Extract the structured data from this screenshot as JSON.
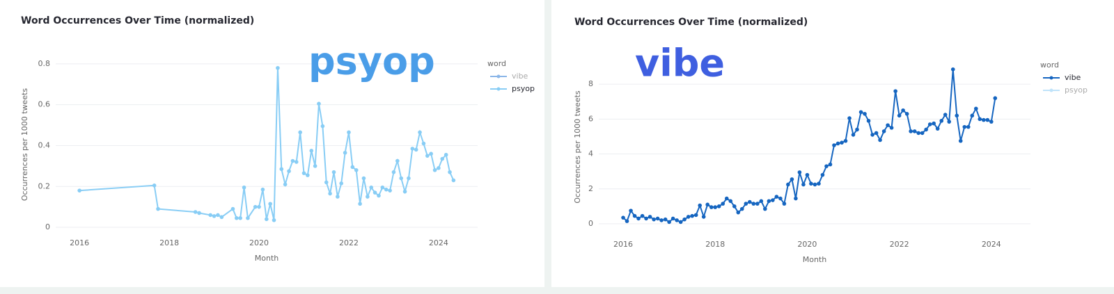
{
  "chart_data": [
    {
      "type": "line",
      "title": "Word Occurrences Over Time (normalized)",
      "annotation": "psyop",
      "x_label": "Month",
      "y_label": "Occurrences per 1000 tweets",
      "legend_title": "word",
      "xlim": [
        2015.47,
        2024.87
      ],
      "xticks": [
        2016,
        2018,
        2020,
        2022,
        2024
      ],
      "ylim": [
        -0.01,
        0.82
      ],
      "yticks": [
        0,
        0.2,
        0.4,
        0.6,
        0.8
      ],
      "grid": true,
      "x": [
        2016.0,
        2017.667,
        2017.75,
        2018.583,
        2018.667,
        2018.917,
        2019.0,
        2019.083,
        2019.167,
        2019.417,
        2019.5,
        2019.583,
        2019.667,
        2019.75,
        2019.917,
        2020.0,
        2020.083,
        2020.167,
        2020.25,
        2020.333,
        2020.417,
        2020.5,
        2020.583,
        2020.667,
        2020.75,
        2020.833,
        2020.917,
        2021.0,
        2021.083,
        2021.167,
        2021.25,
        2021.333,
        2021.417,
        2021.5,
        2021.583,
        2021.667,
        2021.75,
        2021.833,
        2021.917,
        2022.0,
        2022.083,
        2022.167,
        2022.25,
        2022.333,
        2022.417,
        2022.5,
        2022.583,
        2022.667,
        2022.75,
        2022.833,
        2022.917,
        2023.0,
        2023.083,
        2023.167,
        2023.25,
        2023.333,
        2023.417,
        2023.5,
        2023.583,
        2023.667,
        2023.75,
        2023.833,
        2023.917,
        2024.0,
        2024.083,
        2024.167,
        2024.25,
        2024.333
      ],
      "series": [
        {
          "name": "vibe",
          "color": "#8bb6e8",
          "visible": false
        },
        {
          "name": "psyop",
          "color": "#88cdf5",
          "visible": true,
          "values": [
            0.18,
            0.205,
            0.09,
            0.075,
            0.07,
            0.06,
            0.055,
            0.06,
            0.05,
            0.09,
            0.045,
            0.045,
            0.195,
            0.045,
            0.1,
            0.1,
            0.185,
            0.04,
            0.115,
            0.035,
            0.78,
            0.285,
            0.21,
            0.275,
            0.325,
            0.32,
            0.465,
            0.265,
            0.255,
            0.375,
            0.3,
            0.605,
            0.495,
            0.22,
            0.165,
            0.27,
            0.15,
            0.215,
            0.365,
            0.465,
            0.295,
            0.28,
            0.115,
            0.24,
            0.15,
            0.195,
            0.17,
            0.155,
            0.195,
            0.185,
            0.18,
            0.27,
            0.325,
            0.24,
            0.175,
            0.24,
            0.385,
            0.38,
            0.465,
            0.41,
            0.35,
            0.36,
            0.28,
            0.29,
            0.335,
            0.355,
            0.27,
            0.23
          ]
        }
      ]
    },
    {
      "type": "line",
      "title": "Word Occurrences Over Time (normalized)",
      "annotation": "vibe",
      "x_label": "Month",
      "y_label": "Occurrences per 1000 tweets",
      "legend_title": "word",
      "xlim": [
        2015.47,
        2024.85
      ],
      "xticks": [
        2016,
        2018,
        2020,
        2022,
        2024
      ],
      "ylim": [
        -0.4,
        9.2
      ],
      "yticks": [
        0,
        2,
        4,
        6,
        8
      ],
      "grid": true,
      "x": [
        2016.0,
        2016.083,
        2016.167,
        2016.25,
        2016.333,
        2016.417,
        2016.5,
        2016.583,
        2016.667,
        2016.75,
        2016.833,
        2016.917,
        2017.0,
        2017.083,
        2017.167,
        2017.25,
        2017.333,
        2017.417,
        2017.5,
        2017.583,
        2017.667,
        2017.75,
        2017.833,
        2017.917,
        2018.0,
        2018.083,
        2018.167,
        2018.25,
        2018.333,
        2018.417,
        2018.5,
        2018.583,
        2018.667,
        2018.75,
        2018.833,
        2018.917,
        2019.0,
        2019.083,
        2019.167,
        2019.25,
        2019.333,
        2019.417,
        2019.5,
        2019.583,
        2019.667,
        2019.75,
        2019.833,
        2019.917,
        2020.0,
        2020.083,
        2020.167,
        2020.25,
        2020.333,
        2020.417,
        2020.5,
        2020.583,
        2020.667,
        2020.75,
        2020.833,
        2020.917,
        2021.0,
        2021.083,
        2021.167,
        2021.25,
        2021.333,
        2021.417,
        2021.5,
        2021.583,
        2021.667,
        2021.75,
        2021.833,
        2021.917,
        2022.0,
        2022.083,
        2022.167,
        2022.25,
        2022.333,
        2022.417,
        2022.5,
        2022.583,
        2022.667,
        2022.75,
        2022.833,
        2022.917,
        2023.0,
        2023.083,
        2023.167,
        2023.25,
        2023.333,
        2023.417,
        2023.5,
        2023.583,
        2023.667,
        2023.75,
        2023.833,
        2023.917,
        2024.0,
        2024.083
      ],
      "series": [
        {
          "name": "vibe",
          "color": "#1565c0",
          "visible": true,
          "values": [
            0.35,
            0.15,
            0.75,
            0.45,
            0.3,
            0.45,
            0.3,
            0.4,
            0.25,
            0.3,
            0.2,
            0.25,
            0.1,
            0.3,
            0.2,
            0.1,
            0.25,
            0.4,
            0.45,
            0.5,
            1.05,
            0.4,
            1.1,
            0.95,
            0.95,
            1.0,
            1.15,
            1.45,
            1.3,
            1.0,
            0.65,
            0.85,
            1.15,
            1.25,
            1.15,
            1.15,
            1.3,
            0.85,
            1.3,
            1.35,
            1.55,
            1.45,
            1.15,
            2.25,
            2.55,
            1.45,
            2.95,
            2.25,
            2.8,
            2.3,
            2.25,
            2.3,
            2.8,
            3.3,
            3.4,
            4.5,
            4.6,
            4.65,
            4.75,
            6.05,
            5.1,
            5.4,
            6.4,
            6.3,
            5.9,
            5.1,
            5.2,
            4.8,
            5.3,
            5.65,
            5.5,
            7.6,
            6.2,
            6.5,
            6.3,
            5.3,
            5.3,
            5.2,
            5.2,
            5.4,
            5.7,
            5.75,
            5.45,
            5.9,
            6.25,
            5.85,
            8.85,
            6.2,
            4.75,
            5.55,
            5.55,
            6.2,
            6.6,
            6.0,
            5.95,
            5.95,
            5.85,
            7.2
          ]
        },
        {
          "name": "psyop",
          "color": "#bfe3fa",
          "visible": false
        }
      ]
    }
  ]
}
